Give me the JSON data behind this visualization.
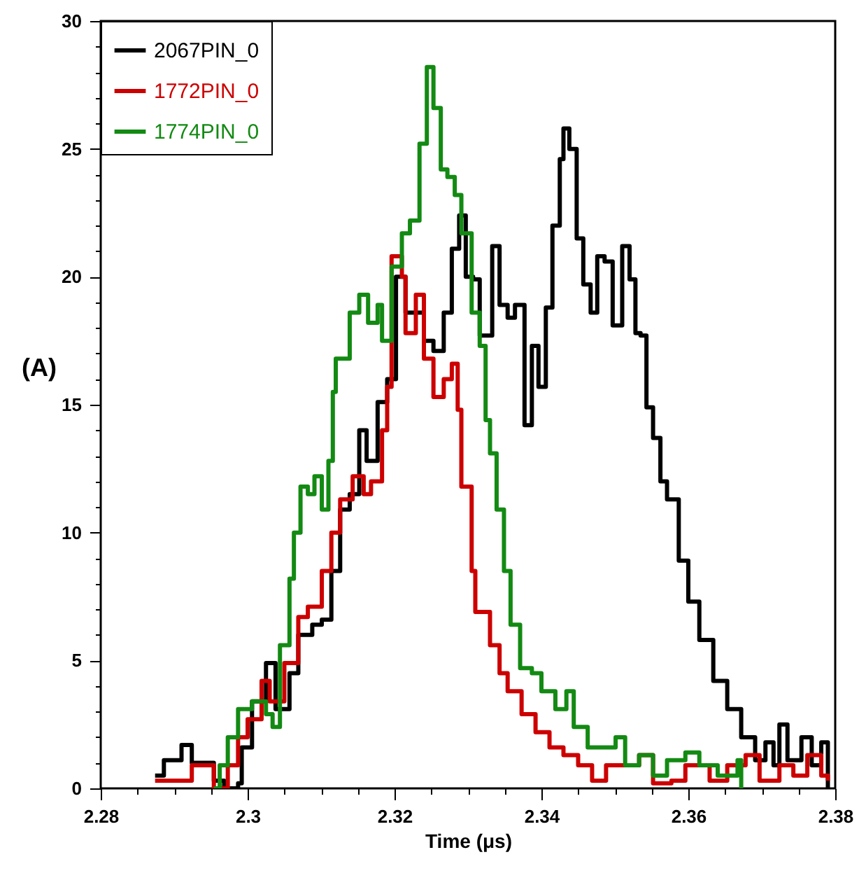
{
  "chart_data": {
    "type": "step",
    "xlabel": "Time (μs)",
    "ylabel": "(A)",
    "xlim": [
      2.28,
      2.38
    ],
    "ylim": [
      0,
      30
    ],
    "xticks": [
      2.28,
      {
        "value": 2.285,
        "label": null
      },
      {
        "value": 2.29,
        "label": null
      },
      {
        "value": 2.295,
        "label": null
      },
      2.3,
      {
        "value": 2.305,
        "label": null
      },
      {
        "value": 2.31,
        "label": null
      },
      {
        "value": 2.315,
        "label": null
      },
      2.32,
      {
        "value": 2.325,
        "label": null
      },
      {
        "value": 2.33,
        "label": null
      },
      {
        "value": 2.335,
        "label": null
      },
      2.34,
      {
        "value": 2.345,
        "label": null
      },
      {
        "value": 2.35,
        "label": null
      },
      {
        "value": 2.355,
        "label": null
      },
      2.36,
      {
        "value": 2.365,
        "label": null
      },
      {
        "value": 2.37,
        "label": null
      },
      {
        "value": 2.375,
        "label": null
      },
      2.38
    ],
    "yticks": [
      0,
      {
        "value": 1,
        "label": null
      },
      {
        "value": 2,
        "label": null
      },
      {
        "value": 3,
        "label": null
      },
      {
        "value": 4,
        "label": null
      },
      5,
      {
        "value": 6,
        "label": null
      },
      {
        "value": 7,
        "label": null
      },
      {
        "value": 8,
        "label": null
      },
      {
        "value": 9,
        "label": null
      },
      10,
      {
        "value": 11,
        "label": null
      },
      {
        "value": 12,
        "label": null
      },
      {
        "value": 13,
        "label": null
      },
      {
        "value": 14,
        "label": null
      },
      15,
      {
        "value": 16,
        "label": null
      },
      {
        "value": 17,
        "label": null
      },
      {
        "value": 18,
        "label": null
      },
      {
        "value": 19,
        "label": null
      },
      20,
      {
        "value": 21,
        "label": null
      },
      {
        "value": 22,
        "label": null
      },
      {
        "value": 23,
        "label": null
      },
      {
        "value": 24,
        "label": null
      },
      25,
      {
        "value": 26,
        "label": null
      },
      {
        "value": 27,
        "label": null
      },
      {
        "value": 28,
        "label": null
      },
      {
        "value": 29,
        "label": null
      },
      30
    ],
    "grid": false,
    "legend": "top left",
    "series": [
      {
        "name": "2067PIN_0",
        "color": "#000000",
        "x": [
          2.2874,
          2.2886,
          2.291,
          2.2924,
          2.2954,
          2.2968,
          2.2987,
          2.2992,
          2.3006,
          2.3025,
          2.3038,
          2.3057,
          2.3069,
          2.3088,
          2.3101,
          2.3114,
          2.3126,
          2.3139,
          2.3152,
          2.3162,
          2.3177,
          2.319,
          2.3202,
          2.3215,
          2.324,
          2.3253,
          2.3267,
          2.3278,
          2.3288,
          2.3297,
          2.3307,
          2.3316,
          2.3333,
          2.3343,
          2.3354,
          2.3364,
          2.3377,
          2.3387,
          2.3396,
          2.3406,
          2.3415,
          2.3425,
          2.343,
          2.3438,
          2.3448,
          2.3457,
          2.3467,
          2.3476,
          2.3486,
          2.3497,
          2.351,
          2.352,
          2.3528,
          2.3535,
          2.3543,
          2.3552,
          2.3562,
          2.3571,
          2.3587,
          2.36,
          2.3615,
          2.3634,
          2.3653,
          2.3672,
          2.3691,
          2.3705,
          2.3716,
          2.3724,
          2.3735,
          2.3754,
          2.3768,
          2.3781,
          2.379
        ],
        "values": [
          0.5,
          1.1,
          1.7,
          1.0,
          0.3,
          0,
          0.2,
          1.6,
          3.4,
          4.9,
          3.1,
          4.5,
          6.0,
          6.4,
          6.6,
          8.5,
          10.9,
          11.5,
          14.0,
          12.8,
          15.1,
          16.0,
          20.0,
          18.6,
          17.5,
          17.1,
          18.6,
          21.1,
          22.4,
          20.0,
          19.9,
          17.7,
          21.2,
          18.9,
          18.4,
          18.9,
          14.2,
          17.3,
          15.7,
          18.8,
          22.0,
          24.6,
          25.8,
          25.0,
          21.5,
          19.7,
          18.6,
          20.8,
          20.6,
          18.1,
          21.2,
          19.9,
          17.8,
          17.7,
          14.9,
          13.7,
          12.0,
          11.3,
          8.9,
          7.3,
          5.8,
          4.2,
          3.1,
          2.0,
          1.1,
          1.8,
          0.9,
          2.5,
          1.1,
          2.0,
          0.9,
          1.8,
          0
        ]
      },
      {
        "name": "1772PIN_0",
        "color": "#cc0000",
        "x": [
          2.2874,
          2.2924,
          2.2954,
          2.2973,
          2.2987,
          2.3,
          2.3019,
          2.303,
          2.305,
          2.3069,
          2.3082,
          2.3101,
          2.3114,
          2.3126,
          2.3143,
          2.3158,
          2.3168,
          2.3183,
          2.319,
          2.3196,
          2.321,
          2.3215,
          2.3229,
          2.324,
          2.3253,
          2.3267,
          2.3278,
          2.3286,
          2.3291,
          2.3305,
          2.331,
          2.333,
          2.3343,
          2.3354,
          2.3373,
          2.3392,
          2.3411,
          2.343,
          2.345,
          2.3469,
          2.3488,
          2.3533,
          2.3552,
          2.3577,
          2.3596,
          2.3629,
          2.3653,
          2.3678,
          2.3697,
          2.3724,
          2.3743,
          2.3762,
          2.3781,
          2.379
        ],
        "values": [
          0.3,
          0.9,
          0,
          0.9,
          2.0,
          2.7,
          4.2,
          3.4,
          4.9,
          6.7,
          7.1,
          8.5,
          10.0,
          11.3,
          12.2,
          11.5,
          12.0,
          14.0,
          15.7,
          20.8,
          20.0,
          17.8,
          19.3,
          16.8,
          15.3,
          16.0,
          16.6,
          14.8,
          11.8,
          8.5,
          6.9,
          5.6,
          4.5,
          3.8,
          2.9,
          2.2,
          1.6,
          1.3,
          0.9,
          0.3,
          0.9,
          1.3,
          0.2,
          0.3,
          0.9,
          0.3,
          0.9,
          1.3,
          0.3,
          0.9,
          0.5,
          1.3,
          0.5,
          0.3
        ]
      },
      {
        "name": "1774PIN_0",
        "color": "#138a13",
        "x": [
          2.2954,
          2.2962,
          2.2973,
          2.2987,
          2.3006,
          2.3025,
          2.3034,
          2.3044,
          2.3057,
          2.3063,
          2.3072,
          2.3082,
          2.3091,
          2.3101,
          2.311,
          2.3116,
          2.312,
          2.3139,
          2.3152,
          2.3164,
          2.3177,
          2.3183,
          2.3196,
          2.321,
          2.3221,
          2.3234,
          2.3244,
          2.3253,
          2.3263,
          2.3272,
          2.3282,
          2.3291,
          2.3305,
          2.3316,
          2.3324,
          2.333,
          2.3339,
          2.3349,
          2.3358,
          2.3371,
          2.3387,
          2.34,
          2.3419,
          2.3434,
          2.3444,
          2.3463,
          2.3501,
          2.3514,
          2.3533,
          2.3552,
          2.3571,
          2.3596,
          2.3615,
          2.364,
          2.3667,
          2.3672
        ],
        "values": [
          0,
          0.9,
          2.0,
          3.1,
          3.4,
          2.9,
          2.4,
          5.6,
          8.2,
          10.0,
          11.8,
          11.5,
          12.2,
          10.9,
          12.8,
          15.5,
          16.8,
          18.6,
          19.3,
          18.2,
          18.9,
          17.5,
          20.4,
          21.7,
          22.2,
          25.2,
          28.2,
          26.6,
          24.2,
          23.9,
          23.2,
          21.7,
          18.6,
          17.3,
          14.4,
          13.1,
          10.9,
          8.5,
          6.4,
          4.7,
          4.5,
          3.8,
          3.1,
          3.8,
          2.4,
          1.6,
          2.0,
          0.9,
          1.3,
          0.5,
          1.1,
          1.4,
          0.9,
          0.5,
          1.1,
          0
        ]
      }
    ]
  }
}
